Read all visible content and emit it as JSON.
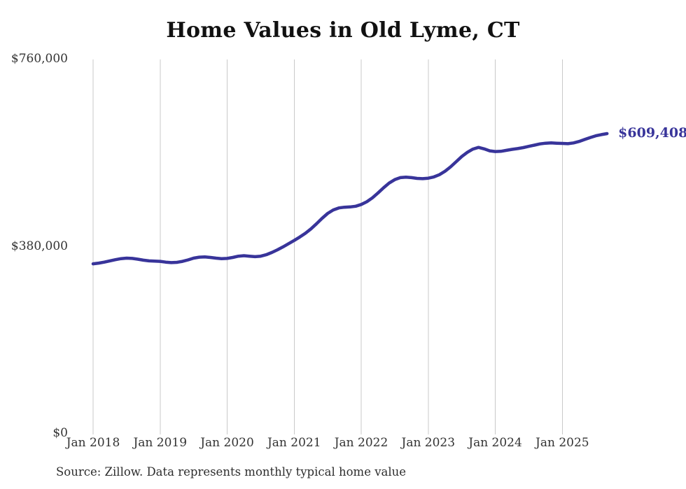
{
  "page": {
    "source_note": "Source: Zillow. Data represents monthly typical home value"
  },
  "colors": {
    "line": "#38349a",
    "grid": "#c9c9c9",
    "axis_text": "#333333",
    "title_text": "#111111"
  },
  "chart_data": {
    "type": "line",
    "title": "Home Values in Old Lyme, CT",
    "series_name": "Monthly typical home value",
    "xlabel": "",
    "ylabel": "",
    "ylim": [
      0,
      760000
    ],
    "grid": "vertical-only",
    "legend": "none",
    "end_label": "$609,408",
    "y_ticks": [
      {
        "label": "$0",
        "value": 0
      },
      {
        "label": "$380,000",
        "value": 380000
      },
      {
        "label": "$760,000",
        "value": 760000
      }
    ],
    "x_tick_labels": [
      "Jan 2018",
      "Jan 2019",
      "Jan 2020",
      "Jan 2021",
      "Jan 2022",
      "Jan 2023",
      "Jan 2024",
      "Jan 2025"
    ],
    "months": [
      "2018-01",
      "2018-02",
      "2018-03",
      "2018-04",
      "2018-05",
      "2018-06",
      "2018-07",
      "2018-08",
      "2018-09",
      "2018-10",
      "2018-11",
      "2018-12",
      "2019-01",
      "2019-02",
      "2019-03",
      "2019-04",
      "2019-05",
      "2019-06",
      "2019-07",
      "2019-08",
      "2019-09",
      "2019-10",
      "2019-11",
      "2019-12",
      "2020-01",
      "2020-02",
      "2020-03",
      "2020-04",
      "2020-05",
      "2020-06",
      "2020-07",
      "2020-08",
      "2020-09",
      "2020-10",
      "2020-11",
      "2020-12",
      "2021-01",
      "2021-02",
      "2021-03",
      "2021-04",
      "2021-05",
      "2021-06",
      "2021-07",
      "2021-08",
      "2021-09",
      "2021-10",
      "2021-11",
      "2021-12",
      "2022-01",
      "2022-02",
      "2022-03",
      "2022-04",
      "2022-05",
      "2022-06",
      "2022-07",
      "2022-08",
      "2022-09",
      "2022-10",
      "2022-11",
      "2022-12",
      "2023-01",
      "2023-02",
      "2023-03",
      "2023-04",
      "2023-05",
      "2023-06",
      "2023-07",
      "2023-08",
      "2023-09",
      "2023-10",
      "2023-11",
      "2023-12",
      "2024-01",
      "2024-02",
      "2024-03",
      "2024-04",
      "2024-05",
      "2024-06",
      "2024-07",
      "2024-08",
      "2024-09",
      "2024-10",
      "2024-11",
      "2024-12",
      "2025-01",
      "2025-02",
      "2025-03",
      "2025-04",
      "2025-05",
      "2025-06",
      "2025-07",
      "2025-08",
      "2025-09"
    ],
    "values": [
      345000,
      346500,
      348500,
      351000,
      353500,
      355500,
      356500,
      356000,
      354500,
      352500,
      351000,
      350500,
      350000,
      348500,
      347500,
      348000,
      350000,
      353000,
      356500,
      358500,
      359000,
      358000,
      356500,
      355500,
      356000,
      358000,
      360500,
      361500,
      360500,
      359500,
      360500,
      363500,
      368000,
      373500,
      379500,
      386000,
      392500,
      399500,
      407000,
      416000,
      426500,
      437500,
      447500,
      454500,
      458500,
      460000,
      460500,
      462000,
      465500,
      471000,
      479000,
      489000,
      499500,
      509000,
      516000,
      520000,
      521000,
      520000,
      518500,
      518000,
      519000,
      521500,
      526000,
      533000,
      542000,
      552500,
      563000,
      571500,
      578000,
      581500,
      578500,
      574500,
      573000,
      573500,
      575500,
      577500,
      579000,
      581000,
      583500,
      586000,
      588500,
      590000,
      590500,
      590000,
      589500,
      589000,
      590500,
      593500,
      597500,
      601500,
      605000,
      607500,
      609408
    ]
  }
}
